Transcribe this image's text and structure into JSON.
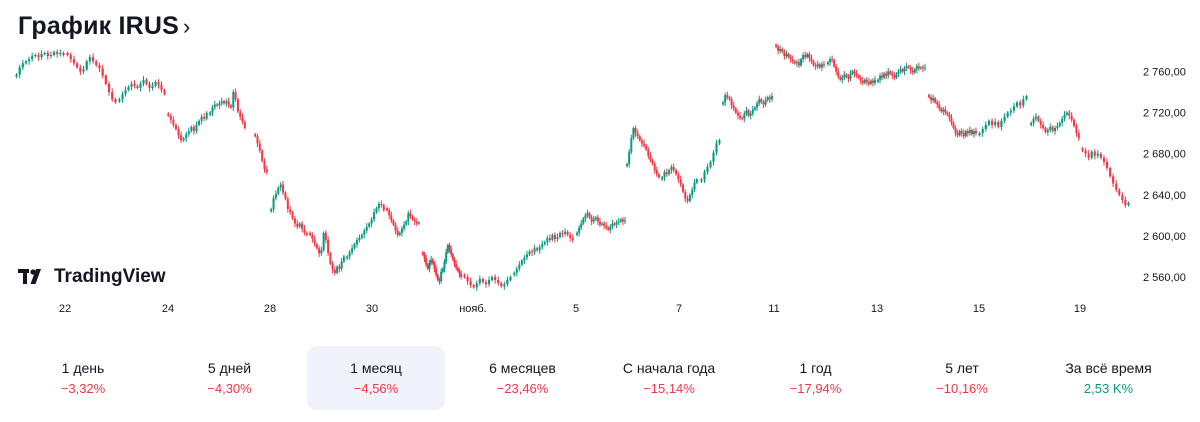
{
  "header": {
    "title": "График IRUS",
    "chevron": "›"
  },
  "logo": {
    "text": "TradingView",
    "icon": "tradingview-logo-icon"
  },
  "colors": {
    "up": "#089981",
    "down": "#f23645",
    "active_bg": "#f0f3fa"
  },
  "periods": [
    {
      "label": "1 день",
      "value": "−3,32%",
      "dir": "neg",
      "active": false
    },
    {
      "label": "5 дней",
      "value": "−4,30%",
      "dir": "neg",
      "active": false
    },
    {
      "label": "1 месяц",
      "value": "−4,56%",
      "dir": "neg",
      "active": true
    },
    {
      "label": "6 месяцев",
      "value": "−23,46%",
      "dir": "neg",
      "active": false
    },
    {
      "label": "С начала года",
      "value": "−15,14%",
      "dir": "neg",
      "active": false
    },
    {
      "label": "1 год",
      "value": "−17,94%",
      "dir": "neg",
      "active": false
    },
    {
      "label": "5 лет",
      "value": "−10,16%",
      "dir": "neg",
      "active": false
    },
    {
      "label": "За всё время",
      "value": "2,53 K%",
      "dir": "pos",
      "active": false
    }
  ],
  "chart_data": {
    "type": "candlestick",
    "title": "",
    "xlabel": "",
    "ylabel": "",
    "ylim": [
      2540,
      2790
    ],
    "y_ticks": [
      "2 560,00",
      "2 600,00",
      "2 640,00",
      "2 680,00",
      "2 720,00",
      "2 760,00"
    ],
    "y_tick_values": [
      2560,
      2600,
      2640,
      2680,
      2720,
      2760
    ],
    "x_ticks": [
      "22",
      "24",
      "28",
      "30",
      "нояб.",
      "5",
      "7",
      "11",
      "13",
      "15",
      "19"
    ],
    "grid": false,
    "series": [
      {
        "day": "21",
        "close": [
          2757,
          2764,
          2768,
          2770,
          2772,
          2775,
          2776,
          2774,
          2777,
          2778,
          2775,
          2776,
          2779,
          2777,
          2778,
          2776
        ]
      },
      {
        "day": "22",
        "close": [
          2776,
          2772,
          2768,
          2764,
          2760,
          2762,
          2770,
          2774,
          2770,
          2766,
          2763,
          2756,
          2748,
          2740,
          2733,
          2730
        ]
      },
      {
        "day": "23",
        "close": [
          2733,
          2738,
          2742,
          2745,
          2748,
          2746,
          2744,
          2748,
          2752,
          2748,
          2744,
          2746,
          2750,
          2747,
          2742,
          2738
        ]
      },
      {
        "day": "24",
        "close": [
          2717,
          2713,
          2708,
          2704,
          2698,
          2693,
          2695,
          2699,
          2702,
          2706,
          2702,
          2708,
          2712,
          2716,
          2714,
          2720
        ]
      },
      {
        "day": "25",
        "close": [
          2720,
          2725,
          2728,
          2727,
          2729,
          2731,
          2729,
          2731,
          2727,
          2725,
          2740,
          2733,
          2721,
          2716,
          2711,
          2705
        ]
      },
      {
        "day": "28",
        "close": [
          2697,
          2690,
          2683,
          2673,
          2665,
          2662
        ]
      },
      {
        "day": "29a",
        "close": [
          2626,
          2637,
          2641,
          2647,
          2650,
          2642,
          2636,
          2626,
          2623,
          2617,
          2612,
          2609,
          2612,
          2607,
          2603,
          2601
        ]
      },
      {
        "day": "29b",
        "close": [
          2601,
          2597,
          2592,
          2588,
          2583,
          2586,
          2603,
          2596,
          2583,
          2573,
          2567,
          2564,
          2570,
          2568,
          2575,
          2580
        ]
      },
      {
        "day": "30",
        "close": [
          2580,
          2584,
          2588,
          2592,
          2596,
          2598,
          2601,
          2605,
          2609,
          2612,
          2616,
          2623,
          2627,
          2631,
          2630,
          2625
        ]
      },
      {
        "day": "31",
        "close": [
          2625,
          2620,
          2615,
          2611,
          2605,
          2601,
          2603,
          2607,
          2611,
          2614,
          2622,
          2619,
          2616,
          2614,
          2612,
          2613
        ]
      },
      {
        "day": "1",
        "close": [
          2582,
          2578,
          2572,
          2568,
          2574,
          2577,
          2573,
          2568,
          2562,
          2557,
          2556,
          2565,
          2568,
          2575,
          2584,
          2591,
          2587,
          2582,
          2577,
          2573,
          2569,
          2566,
          2563,
          2560
        ]
      },
      {
        "day": "2",
        "close": [
          2560,
          2556,
          2552,
          2550,
          2554,
          2558,
          2555,
          2553,
          2557,
          2560,
          2557,
          2554,
          2551,
          2553,
          2557,
          2560
        ]
      },
      {
        "day": "4",
        "close": [
          2564,
          2568,
          2572,
          2576,
          2579,
          2582,
          2585,
          2584,
          2588,
          2586,
          2589,
          2592,
          2594,
          2598,
          2596,
          2601,
          2597,
          2599,
          2603,
          2602,
          2604,
          2601,
          2598,
          2596
        ]
      },
      {
        "day": "5",
        "close": [
          2603,
          2608,
          2612,
          2617,
          2620,
          2622,
          2618,
          2614,
          2616,
          2618,
          2614,
          2611,
          2612,
          2610,
          2608,
          2606,
          2609,
          2612,
          2611,
          2613,
          2614,
          2616,
          2614,
          2615
        ]
      },
      {
        "day": "6",
        "close": [
          2670,
          2682,
          2695,
          2705,
          2700,
          2697,
          2693,
          2690,
          2688,
          2684,
          2678,
          2674,
          2670,
          2664,
          2660,
          2657
        ]
      },
      {
        "day": "7",
        "close": [
          2657,
          2662,
          2660,
          2664,
          2667,
          2664,
          2660,
          2655,
          2650,
          2643,
          2636,
          2634,
          2640,
          2645,
          2652,
          2655
        ]
      },
      {
        "day": "8",
        "close": [
          2655,
          2662,
          2667,
          2672,
          2681,
          2690,
          2693
        ]
      },
      {
        "day": "11",
        "close": [
          2730,
          2737,
          2735,
          2733,
          2727,
          2724,
          2720,
          2717,
          2715,
          2714,
          2719,
          2722,
          2717,
          2719,
          2723,
          2725,
          2729,
          2733,
          2730,
          2728,
          2732,
          2735,
          2733,
          2736
        ]
      },
      {
        "day": "12",
        "close": [
          2784,
          2780,
          2782,
          2779,
          2775,
          2777,
          2774,
          2772,
          2770,
          2768,
          2769,
          2766,
          2772,
          2776,
          2774,
          2777,
          2773,
          2770,
          2766,
          2765,
          2767,
          2764,
          2767,
          2766
        ]
      },
      {
        "day": "13",
        "close": [
          2769,
          2772,
          2771,
          2765,
          2760,
          2755,
          2752,
          2754,
          2757,
          2755,
          2753,
          2758,
          2760,
          2758,
          2756,
          2754,
          2751,
          2749,
          2752,
          2750,
          2748,
          2751,
          2749,
          2752
        ]
      },
      {
        "day": "14",
        "close": [
          2752,
          2756,
          2754,
          2758,
          2756,
          2760,
          2758,
          2756,
          2754,
          2758,
          2760,
          2762,
          2760,
          2763,
          2765,
          2764,
          2761,
          2759,
          2762,
          2765,
          2763,
          2764,
          2763,
          2764
        ]
      },
      {
        "day": "15",
        "close": [
          2735,
          2732,
          2734,
          2730,
          2728,
          2724,
          2721,
          2723,
          2720,
          2718,
          2715,
          2710,
          2705,
          2700,
          2698,
          2702,
          2700,
          2697,
          2702,
          2700,
          2703,
          2699,
          2702,
          2700
        ]
      },
      {
        "day": "18",
        "close": [
          2700,
          2704,
          2708,
          2712,
          2708,
          2711,
          2706,
          2712,
          2716,
          2720,
          2722,
          2726,
          2730,
          2727,
          2733,
          2736
        ]
      },
      {
        "day": "19",
        "close": [
          2710,
          2714,
          2716,
          2712,
          2708,
          2705,
          2701,
          2703,
          2706,
          2702,
          2705,
          2707,
          2710,
          2714,
          2718,
          2720,
          2717,
          2713,
          2707,
          2700,
          2695
        ]
      },
      {
        "day": "20",
        "close": [
          2683,
          2680,
          2676,
          2682,
          2678,
          2680,
          2676,
          2672,
          2666,
          2658,
          2651,
          2645,
          2640,
          2635,
          2630,
          2632
        ]
      }
    ]
  }
}
